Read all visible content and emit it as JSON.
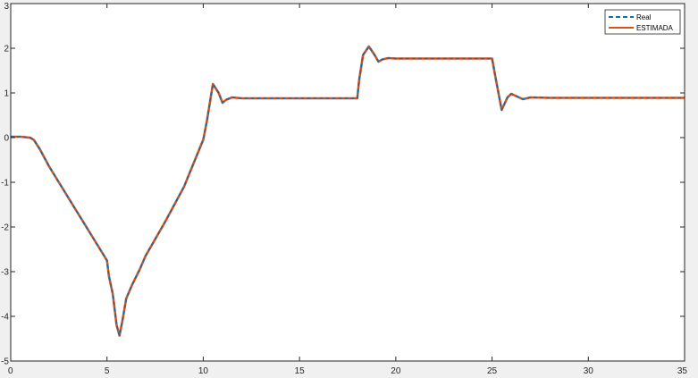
{
  "chart_data": {
    "type": "line",
    "title": "",
    "xlabel": "",
    "ylabel": "",
    "xlim": [
      0,
      35
    ],
    "ylim": [
      -5,
      3
    ],
    "xticks": [
      0,
      5,
      10,
      15,
      20,
      25,
      30,
      35
    ],
    "yticks": [
      -5,
      -4,
      -3,
      -2,
      -1,
      0,
      1,
      2,
      3
    ],
    "xtick_labels": [
      "0",
      "5",
      "10",
      "15",
      "20",
      "25",
      "30",
      "35"
    ],
    "ytick_labels": [
      "-5",
      "-4",
      "-3",
      "-2",
      "-1",
      "0",
      "1",
      "2",
      "3"
    ],
    "grid": false,
    "legend_position": "top-right",
    "series": [
      {
        "name": "Real",
        "color": "#0072BD",
        "style": "dashed",
        "x": [
          0,
          0.5,
          1.0,
          1.2,
          1.5,
          2.0,
          3.0,
          4.0,
          5.0,
          5.1,
          5.3,
          5.5,
          5.65,
          5.8,
          6.0,
          6.3,
          6.7,
          7.0,
          8.0,
          9.0,
          9.9,
          10.0,
          10.2,
          10.5,
          10.8,
          11.0,
          11.2,
          11.5,
          12.0,
          13.0,
          14.0,
          15.0,
          16.0,
          17.0,
          18.0,
          18.1,
          18.3,
          18.6,
          18.9,
          19.1,
          19.3,
          19.6,
          20.0,
          21.0,
          22.0,
          23.0,
          24.0,
          25.0,
          25.2,
          25.5,
          25.8,
          26.0,
          26.3,
          26.6,
          27.0,
          28.0,
          29.0,
          30.0,
          31.0,
          32.0,
          33.0,
          34.0,
          35.0
        ],
        "y": [
          0.02,
          0.02,
          0.0,
          -0.05,
          -0.25,
          -0.65,
          -1.35,
          -2.05,
          -2.75,
          -3.1,
          -3.5,
          -4.2,
          -4.43,
          -4.1,
          -3.6,
          -3.3,
          -2.95,
          -2.65,
          -1.9,
          -1.1,
          -0.15,
          -0.05,
          0.4,
          1.2,
          1.0,
          0.78,
          0.85,
          0.9,
          0.88,
          0.88,
          0.88,
          0.88,
          0.88,
          0.88,
          0.88,
          1.3,
          1.85,
          2.04,
          1.85,
          1.7,
          1.75,
          1.78,
          1.77,
          1.77,
          1.77,
          1.77,
          1.77,
          1.77,
          1.3,
          0.62,
          0.9,
          0.98,
          0.92,
          0.86,
          0.9,
          0.89,
          0.89,
          0.89,
          0.89,
          0.89,
          0.89,
          0.89,
          0.89
        ]
      },
      {
        "name": "ESTIMADA",
        "color": "#D95319",
        "style": "solid",
        "x": [
          0,
          0.5,
          1.0,
          1.2,
          1.5,
          2.0,
          3.0,
          4.0,
          5.0,
          5.1,
          5.3,
          5.5,
          5.65,
          5.8,
          6.0,
          6.3,
          6.7,
          7.0,
          8.0,
          9.0,
          9.9,
          10.0,
          10.2,
          10.5,
          10.8,
          11.0,
          11.2,
          11.5,
          12.0,
          13.0,
          14.0,
          15.0,
          16.0,
          17.0,
          18.0,
          18.1,
          18.3,
          18.6,
          18.9,
          19.1,
          19.3,
          19.6,
          20.0,
          21.0,
          22.0,
          23.0,
          24.0,
          25.0,
          25.2,
          25.5,
          25.8,
          26.0,
          26.3,
          26.6,
          27.0,
          28.0,
          29.0,
          30.0,
          31.0,
          32.0,
          33.0,
          34.0,
          35.0
        ],
        "y": [
          0.02,
          0.02,
          0.0,
          -0.05,
          -0.25,
          -0.65,
          -1.35,
          -2.05,
          -2.75,
          -3.1,
          -3.5,
          -4.2,
          -4.43,
          -4.1,
          -3.6,
          -3.3,
          -2.95,
          -2.65,
          -1.9,
          -1.1,
          -0.15,
          -0.05,
          0.4,
          1.2,
          1.0,
          0.78,
          0.85,
          0.9,
          0.88,
          0.88,
          0.88,
          0.88,
          0.88,
          0.88,
          0.88,
          1.3,
          1.85,
          2.04,
          1.85,
          1.7,
          1.75,
          1.78,
          1.77,
          1.77,
          1.77,
          1.77,
          1.77,
          1.77,
          1.3,
          0.62,
          0.9,
          0.98,
          0.92,
          0.86,
          0.9,
          0.89,
          0.89,
          0.89,
          0.89,
          0.89,
          0.89,
          0.89,
          0.89
        ]
      }
    ]
  }
}
